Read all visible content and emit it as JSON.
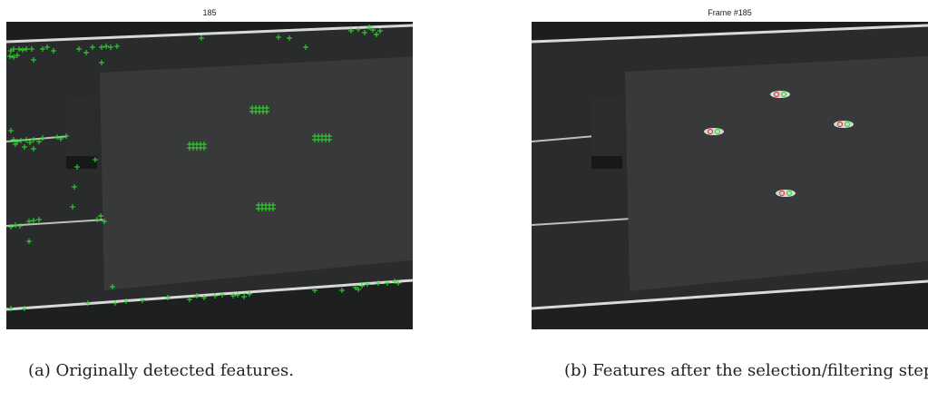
{
  "figure": {
    "panels": [
      {
        "id": "a",
        "frame_title": "185",
        "caption": "(a) Originally detected features.",
        "marker_color": "#2fe02f",
        "marker_shape": "plus"
      },
      {
        "id": "b",
        "frame_title": "Frame #185",
        "caption": "(b) Features after the selection/filtering step",
        "marker_colors": [
          "#2fe02f",
          "#e0402f"
        ],
        "marker_shape": "dot-pair"
      }
    ]
  }
}
